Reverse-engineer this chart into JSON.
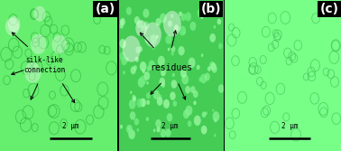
{
  "fig_width": 3.78,
  "fig_height": 1.67,
  "dpi": 100,
  "panel_a_bg": "#66ee6e",
  "panel_b_bg": "#44cc55",
  "panel_b_bright": "#88ff99",
  "panel_c_bg": "#77ff88",
  "ring_color_ac": "#33bb44",
  "ring_color_b": "#55dd66",
  "scale_bar_text": "2 μm",
  "label_a": "silk-like\nconnection",
  "label_b": "residues",
  "label_fontsize": 5.5,
  "scale_fontsize": 5.5,
  "panel_label_fontsize": 10
}
